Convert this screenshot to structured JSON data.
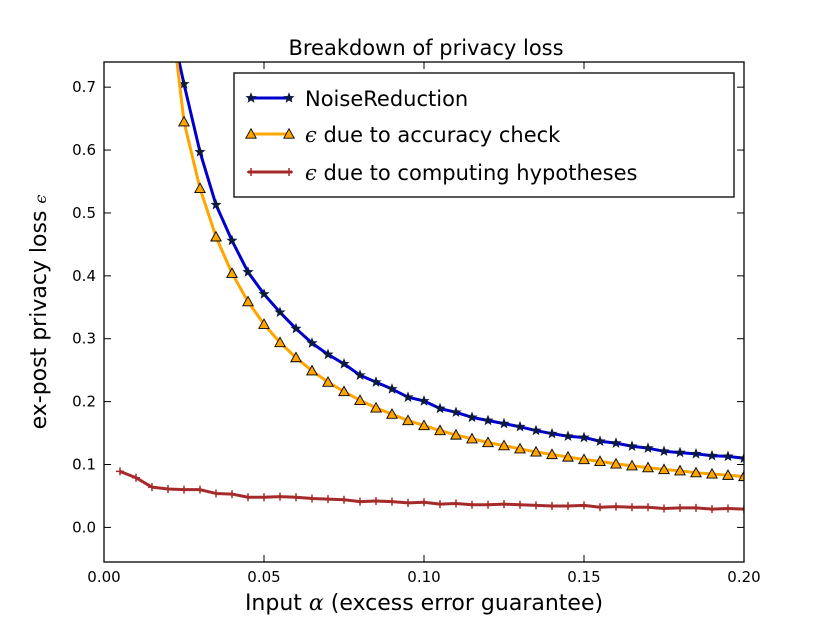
{
  "chart_data": {
    "type": "line",
    "title": "Breakdown of privacy loss",
    "xlabel": {
      "prefix": "Input ",
      "symbol": "α",
      "suffix": " (excess error guarantee)"
    },
    "ylabel": {
      "prefix": "ex-post privacy loss ",
      "symbol": "ϵ"
    },
    "xlim": [
      0.0,
      0.2
    ],
    "ylim": [
      -0.055,
      0.74
    ],
    "x_ticks": [
      "0.00",
      "0.05",
      "0.10",
      "0.15",
      "0.20"
    ],
    "y_ticks": [
      "0.0",
      "0.1",
      "0.2",
      "0.3",
      "0.4",
      "0.5",
      "0.6",
      "0.7"
    ],
    "grid": false,
    "legend_position": "top-right",
    "series": [
      {
        "name": "NoiseReduction",
        "legend_symbol": "",
        "legend_text": "NoiseReduction",
        "color": "#0000cc",
        "marker": "star",
        "x": [
          0.025,
          0.03,
          0.035,
          0.04,
          0.045,
          0.05,
          0.055,
          0.06,
          0.065,
          0.07,
          0.075,
          0.08,
          0.085,
          0.09,
          0.095,
          0.1,
          0.105,
          0.11,
          0.115,
          0.12,
          0.125,
          0.13,
          0.135,
          0.14,
          0.145,
          0.15,
          0.155,
          0.16,
          0.165,
          0.17,
          0.175,
          0.18,
          0.185,
          0.19,
          0.195,
          0.2
        ],
        "y": [
          0.705,
          0.597,
          0.513,
          0.456,
          0.406,
          0.371,
          0.342,
          0.316,
          0.293,
          0.275,
          0.26,
          0.242,
          0.231,
          0.22,
          0.207,
          0.201,
          0.189,
          0.183,
          0.175,
          0.17,
          0.165,
          0.16,
          0.154,
          0.149,
          0.145,
          0.143,
          0.137,
          0.134,
          0.129,
          0.126,
          0.121,
          0.119,
          0.117,
          0.114,
          0.113,
          0.11
        ],
        "curve_x": [
          0.0235,
          0.025,
          0.03,
          0.035,
          0.04,
          0.045,
          0.05,
          0.055,
          0.06,
          0.065,
          0.07,
          0.075,
          0.08,
          0.085,
          0.09,
          0.095,
          0.1,
          0.105,
          0.11,
          0.115,
          0.12,
          0.125,
          0.13,
          0.135,
          0.14,
          0.145,
          0.15,
          0.155,
          0.16,
          0.165,
          0.17,
          0.175,
          0.18,
          0.185,
          0.19,
          0.195,
          0.2
        ],
        "curve_y": [
          0.74,
          0.705,
          0.597,
          0.513,
          0.456,
          0.406,
          0.371,
          0.342,
          0.316,
          0.293,
          0.275,
          0.26,
          0.242,
          0.231,
          0.22,
          0.207,
          0.201,
          0.189,
          0.183,
          0.175,
          0.17,
          0.165,
          0.16,
          0.154,
          0.149,
          0.145,
          0.143,
          0.137,
          0.134,
          0.129,
          0.126,
          0.121,
          0.119,
          0.117,
          0.114,
          0.113,
          0.11
        ]
      },
      {
        "name": "ϵ due to accuracy check",
        "legend_symbol": "ϵ",
        "legend_text": " due to accuracy check",
        "color": "#ffa500",
        "marker": "triangle",
        "x": [
          0.025,
          0.03,
          0.035,
          0.04,
          0.045,
          0.05,
          0.055,
          0.06,
          0.065,
          0.07,
          0.075,
          0.08,
          0.085,
          0.09,
          0.095,
          0.1,
          0.105,
          0.11,
          0.115,
          0.12,
          0.125,
          0.13,
          0.135,
          0.14,
          0.145,
          0.15,
          0.155,
          0.16,
          0.165,
          0.17,
          0.175,
          0.18,
          0.185,
          0.19,
          0.195,
          0.2
        ],
        "y": [
          0.645,
          0.539,
          0.462,
          0.404,
          0.359,
          0.323,
          0.294,
          0.27,
          0.249,
          0.231,
          0.216,
          0.202,
          0.19,
          0.18,
          0.17,
          0.162,
          0.154,
          0.147,
          0.141,
          0.135,
          0.13,
          0.125,
          0.12,
          0.116,
          0.112,
          0.108,
          0.105,
          0.101,
          0.098,
          0.095,
          0.092,
          0.09,
          0.087,
          0.085,
          0.083,
          0.081
        ],
        "curve_x": [
          0.0228,
          0.025,
          0.03,
          0.035,
          0.04,
          0.045,
          0.05,
          0.055,
          0.06,
          0.065,
          0.07,
          0.075,
          0.08,
          0.085,
          0.09,
          0.095,
          0.1,
          0.105,
          0.11,
          0.115,
          0.12,
          0.125,
          0.13,
          0.135,
          0.14,
          0.145,
          0.15,
          0.155,
          0.16,
          0.165,
          0.17,
          0.175,
          0.18,
          0.185,
          0.19,
          0.195,
          0.2
        ],
        "curve_y": [
          0.74,
          0.645,
          0.539,
          0.462,
          0.404,
          0.359,
          0.323,
          0.294,
          0.27,
          0.249,
          0.231,
          0.216,
          0.202,
          0.19,
          0.18,
          0.17,
          0.162,
          0.154,
          0.147,
          0.141,
          0.135,
          0.13,
          0.125,
          0.12,
          0.116,
          0.112,
          0.108,
          0.105,
          0.101,
          0.098,
          0.095,
          0.092,
          0.09,
          0.087,
          0.085,
          0.083,
          0.081
        ]
      },
      {
        "name": "ϵ due to computing hypotheses",
        "legend_symbol": "ϵ",
        "legend_text": " due to computing hypotheses",
        "color": "#a52a2a",
        "marker": "plus",
        "x": [
          0.005,
          0.01,
          0.015,
          0.02,
          0.025,
          0.03,
          0.035,
          0.04,
          0.045,
          0.05,
          0.055,
          0.06,
          0.065,
          0.07,
          0.075,
          0.08,
          0.085,
          0.09,
          0.095,
          0.1,
          0.105,
          0.11,
          0.115,
          0.12,
          0.125,
          0.13,
          0.135,
          0.14,
          0.145,
          0.15,
          0.155,
          0.16,
          0.165,
          0.17,
          0.175,
          0.18,
          0.185,
          0.19,
          0.195,
          0.2
        ],
        "y": [
          0.089,
          0.079,
          0.064,
          0.061,
          0.06,
          0.06,
          0.054,
          0.053,
          0.048,
          0.048,
          0.049,
          0.048,
          0.046,
          0.045,
          0.044,
          0.041,
          0.042,
          0.041,
          0.039,
          0.04,
          0.037,
          0.038,
          0.036,
          0.036,
          0.037,
          0.036,
          0.035,
          0.034,
          0.034,
          0.035,
          0.032,
          0.033,
          0.032,
          0.032,
          0.03,
          0.031,
          0.031,
          0.029,
          0.03,
          0.029
        ]
      }
    ]
  }
}
